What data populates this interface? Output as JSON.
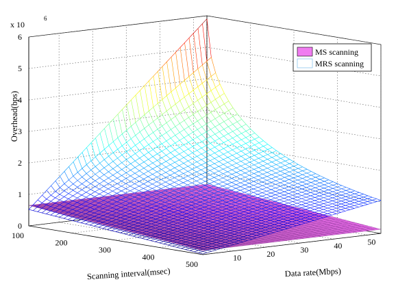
{
  "chart_data": {
    "type": "surface",
    "title": "",
    "xlabel": "Scanning interval(msec)",
    "ylabel": "Data rate(Mbps)",
    "zlabel": "Overhead(bps)",
    "z_multiplier_label": "x 10",
    "z_multiplier_exponent": "6",
    "xlim": [
      100,
      500
    ],
    "ylim": [
      1,
      54
    ],
    "zlim": [
      0,
      6000000
    ],
    "x_ticks": [
      "100",
      "200",
      "300",
      "400",
      "500"
    ],
    "y_ticks": [
      "10",
      "20",
      "30",
      "40",
      "50"
    ],
    "z_ticks": [
      "0",
      "1",
      "2",
      "3",
      "4",
      "5",
      "6"
    ],
    "grid": true,
    "legend_position": "top-right",
    "series": [
      {
        "name": "MS scanning",
        "corners": [
          {
            "x": 100,
            "y": 1,
            "z": 650000
          },
          {
            "x": 100,
            "y": 54,
            "z": 650000
          },
          {
            "x": 500,
            "y": 1,
            "z": 130000
          },
          {
            "x": 500,
            "y": 54,
            "z": 130000
          }
        ],
        "color": "#e060e0"
      },
      {
        "name": "MRS scanning",
        "corners": [
          {
            "x": 100,
            "y": 1,
            "z": 520000
          },
          {
            "x": 100,
            "y": 54,
            "z": 5900000
          },
          {
            "x": 500,
            "y": 1,
            "z": 20000
          },
          {
            "x": 500,
            "y": 54,
            "z": 1050000
          }
        ],
        "color": "jet-colormap"
      }
    ]
  }
}
